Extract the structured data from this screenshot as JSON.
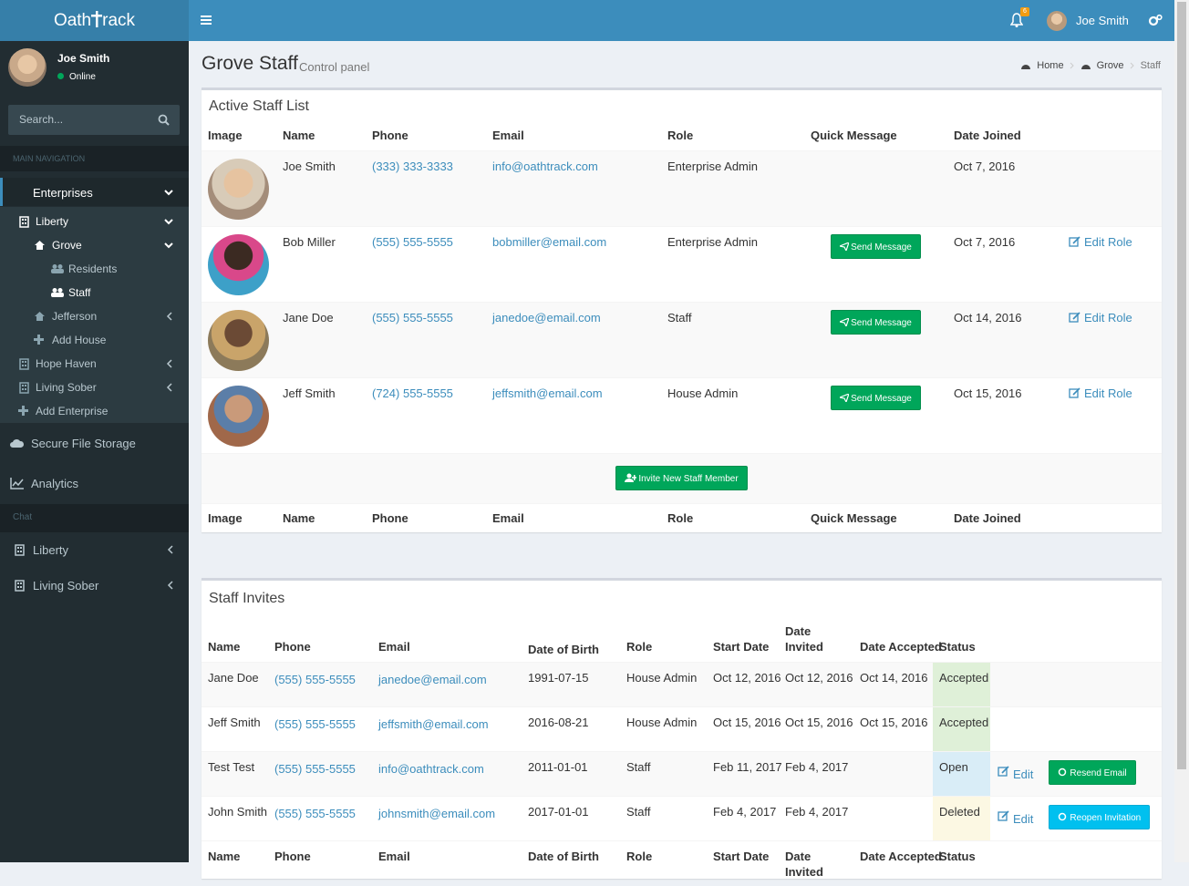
{
  "header": {
    "brand_left": "Oath",
    "brand_right": "rack",
    "notifications": 6,
    "user": "Joe Smith"
  },
  "sidebar": {
    "user": "Joe Smith",
    "status": "Online",
    "search_placeholder": "Search...",
    "main_heading": "MAIN NAVIGATION",
    "nav": [
      "Enterprises",
      "Liberty",
      "Grove",
      "Residents",
      "Staff",
      "Jefferson",
      "Add House",
      "Hope Haven",
      "Living Sober",
      "Add Enterprise",
      "Secure File Storage",
      "Analytics"
    ],
    "chat_heading": "Chat",
    "chat": [
      "Liberty",
      "Living Sober"
    ]
  },
  "content": {
    "title": "Grove Staff",
    "subtitle": "Control panel",
    "breadcrumb": [
      "Home",
      "Grove",
      "Staff"
    ]
  },
  "staff_list": {
    "title": "Active Staff List",
    "columns": [
      "Image",
      "Name",
      "Phone",
      "Email",
      "Role",
      "Quick Message",
      "Date Joined"
    ],
    "rows": [
      {
        "name": "Joe Smith",
        "phone": "(333) 333-3333",
        "email": "info@oathtrack.com",
        "role": "Enterprise Admin",
        "joined": "Oct 7, 2016"
      },
      {
        "name": "Bob Miller",
        "phone": "(555) 555-5555",
        "email": "bobmiller@email.com",
        "role": "Enterprise Admin",
        "message": "Send Message",
        "joined": "Oct 7, 2016",
        "edit": "Edit Role"
      },
      {
        "name": "Jane Doe",
        "phone": "(555) 555-5555",
        "email": "janedoe@email.com",
        "role": "Staff",
        "message": "Send Message",
        "joined": "Oct 14, 2016",
        "edit": "Edit Role"
      },
      {
        "name": "Jeff Smith",
        "phone": "(724) 555-5555",
        "email": "jeffsmith@email.com",
        "role": "House Admin",
        "message": "Send Message",
        "joined": "Oct 15, 2016",
        "edit": "Edit Role"
      }
    ],
    "invite_button": "Invite New Staff Member"
  },
  "invites": {
    "title": "Staff Invites",
    "columns": [
      "Name",
      "Phone",
      "Email",
      "Date of Birth",
      "Role",
      "Start Date",
      "Date Invited",
      "Date Accepted",
      "Status"
    ],
    "rows": [
      {
        "name": "Jane Doe",
        "phone": "(555) 555-5555",
        "email": "janedoe@email.com",
        "dob": "1991-07-15",
        "role": "House Admin",
        "start": "Oct 12, 2016",
        "invited": "Oct 12, 2016",
        "accepted": "Oct 14, 2016",
        "status": "Accepted",
        "status_color": "#dff0d8"
      },
      {
        "name": "Jeff Smith",
        "phone": "(555) 555-5555",
        "email": "jeffsmith@email.com",
        "dob": "2016-08-21",
        "role": "House Admin",
        "start": "Oct 15, 2016",
        "invited": "Oct 15, 2016",
        "accepted": "Oct 15, 2016",
        "status": "Accepted",
        "status_color": "#dff0d8"
      },
      {
        "name": "Test Test",
        "phone": "(555) 555-5555",
        "email": "info@oathtrack.com",
        "dob": "2011-01-01",
        "role": "Staff",
        "start": "Feb 11, 2017",
        "invited": "Feb 4, 2017",
        "status": "Open",
        "status_color": "#d9edf7",
        "edit": "Edit",
        "action": "Resend Email",
        "action_color": "#00a65a"
      },
      {
        "name": "John Smith",
        "phone": "(555) 555-5555",
        "email": "johnsmith@email.com",
        "dob": "2017-01-01",
        "role": "Staff",
        "start": "Feb 4, 2017",
        "invited": "Feb 4, 2017",
        "status": "Deleted",
        "status_color": "#fcf8e3",
        "edit": "Edit",
        "action": "Reopen Invitation",
        "action_color": "#00c0ef"
      }
    ]
  }
}
